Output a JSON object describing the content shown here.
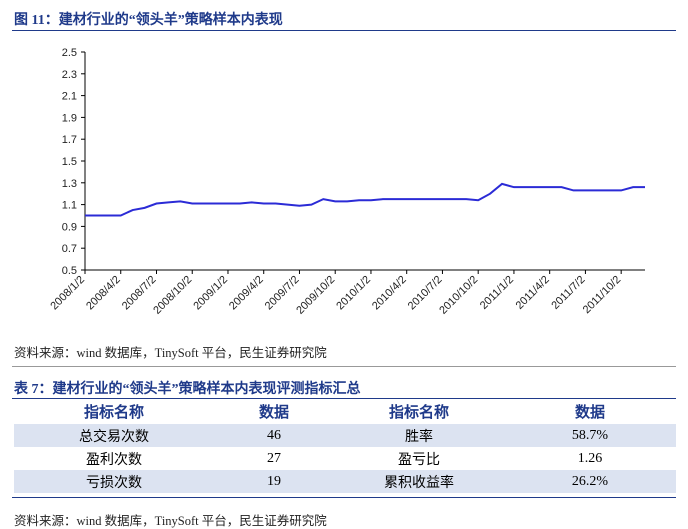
{
  "figure_caption": "图 11：建材行业的“领头羊”策略样本内表现",
  "chart_data": {
    "type": "line",
    "categories": [
      "2008/1/2",
      null,
      null,
      "2008/4/2",
      null,
      null,
      "2008/7/2",
      null,
      null,
      "2008/10/2",
      null,
      null,
      "2009/1/2",
      null,
      null,
      "2009/4/2",
      null,
      null,
      "2009/7/2",
      null,
      null,
      "2009/10/2",
      null,
      null,
      "2010/1/2",
      null,
      null,
      "2010/4/2",
      null,
      null,
      "2010/7/2",
      null,
      null,
      "2010/10/2",
      null,
      null,
      "2011/1/2",
      null,
      null,
      "2011/4/2",
      null,
      null,
      "2011/7/2",
      null,
      null,
      "2011/10/2",
      null,
      null
    ],
    "series": [
      {
        "color": "#2b2bd6",
        "values": [
          1.0,
          1.0,
          1.0,
          1.0,
          1.05,
          1.07,
          1.11,
          1.12,
          1.13,
          1.11,
          1.11,
          1.11,
          1.11,
          1.11,
          1.12,
          1.11,
          1.11,
          1.1,
          1.09,
          1.1,
          1.15,
          1.13,
          1.13,
          1.14,
          1.14,
          1.15,
          1.15,
          1.15,
          1.15,
          1.15,
          1.15,
          1.15,
          1.15,
          1.14,
          1.2,
          1.29,
          1.26,
          1.26,
          1.26,
          1.26,
          1.26,
          1.23,
          1.23,
          1.23,
          1.23,
          1.23,
          1.26,
          1.26
        ]
      }
    ],
    "ylim": [
      0.5,
      2.5
    ],
    "yticks": [
      0.5,
      0.7,
      0.9,
      1.1,
      1.3,
      1.5,
      1.7,
      1.9,
      2.1,
      2.3,
      2.5
    ]
  },
  "figure_source": "资料来源：wind 数据库，TinySoft 平台，民生证券研究院",
  "table": {
    "caption": "表 7：建材行业的“领头羊”策略样本内表现评测指标汇总",
    "header": [
      "指标名称",
      "数据",
      "指标名称",
      "数据"
    ],
    "rows": [
      [
        "总交易次数",
        "46",
        "胜率",
        "58.7%"
      ],
      [
        "盈利次数",
        "27",
        "盈亏比",
        "1.26"
      ],
      [
        "亏损次数",
        "19",
        "累积收益率",
        "26.2%"
      ]
    ],
    "source": "资料来源：wind 数据库，TinySoft 平台，民生证券研究院"
  }
}
